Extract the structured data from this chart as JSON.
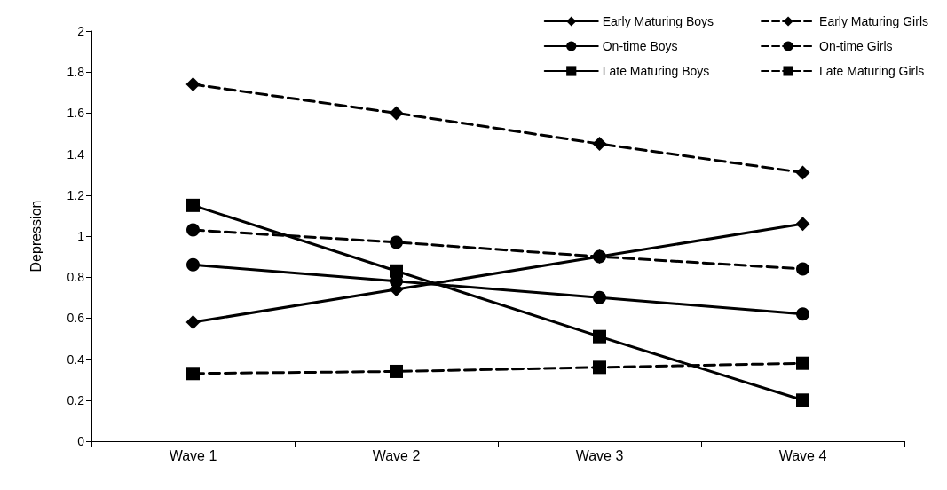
{
  "chart_data": {
    "type": "line",
    "ylabel": "Depression",
    "categories": [
      "Wave 1",
      "Wave 2",
      "Wave 3",
      "Wave 4"
    ],
    "ylim": [
      0,
      2
    ],
    "yticks": [
      0,
      0.2,
      0.4,
      0.6,
      0.8,
      1,
      1.2,
      1.4,
      1.6,
      1.8,
      2
    ],
    "grid": false,
    "legend": "top right",
    "series": [
      {
        "name": "Early Maturing Boys",
        "color": "#000000",
        "marker": "diamond",
        "line_style": "solid",
        "values": [
          0.58,
          0.74,
          0.9,
          1.06
        ]
      },
      {
        "name": "On-time Boys",
        "color": "#000000",
        "marker": "circle",
        "line_style": "solid",
        "values": [
          0.86,
          0.78,
          0.7,
          0.62
        ]
      },
      {
        "name": "Late Maturing Boys",
        "color": "#000000",
        "marker": "square",
        "line_style": "solid",
        "values": [
          1.15,
          0.83,
          0.51,
          0.2
        ]
      },
      {
        "name": "Early Maturing Girls",
        "color": "#000000",
        "marker": "diamond",
        "line_style": "dashed",
        "values": [
          1.74,
          1.6,
          1.45,
          1.31
        ]
      },
      {
        "name": "On-time Girls",
        "color": "#000000",
        "marker": "circle",
        "line_style": "dashed",
        "values": [
          1.03,
          0.97,
          0.9,
          0.84
        ]
      },
      {
        "name": "Late Maturing Girls",
        "color": "#000000",
        "marker": "square",
        "line_style": "dashed",
        "values": [
          0.33,
          0.34,
          0.36,
          0.38
        ]
      }
    ]
  }
}
